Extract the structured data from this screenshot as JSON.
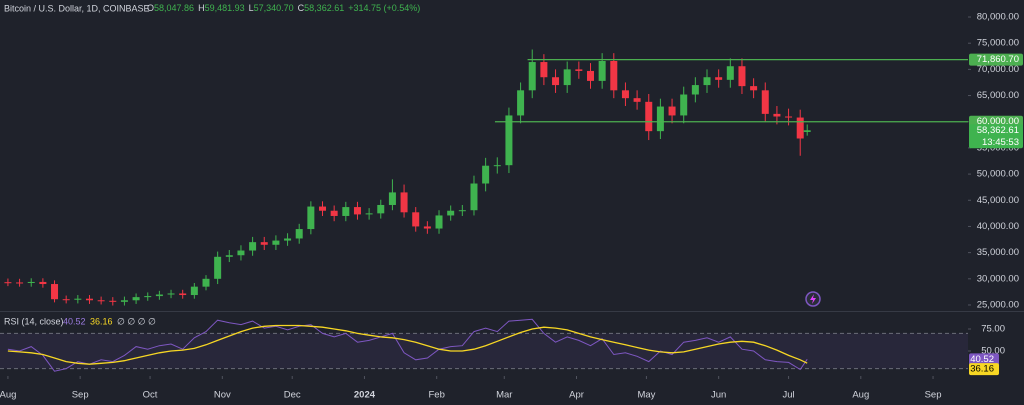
{
  "chart_data": [
    {
      "type": "candlestick",
      "title": "Bitcoin / U.S. Dollar, 1D, COINBASE",
      "header": [
        {
          "label": "O",
          "value": "58,047.86"
        },
        {
          "label": "H",
          "value": "59,481.93"
        },
        {
          "label": "L",
          "value": "57,340.70"
        },
        {
          "label": "C",
          "value": "58,362.61"
        }
      ],
      "change": "+314.75 (+0.54%)",
      "up_color": "#3fb34f",
      "down_color": "#f23645",
      "x": [
        0,
        5,
        10,
        15,
        20,
        25,
        30,
        35,
        40,
        45,
        50,
        55,
        60,
        65,
        70,
        75,
        80,
        85,
        90,
        95,
        100,
        105,
        110,
        115,
        120,
        125,
        130,
        135,
        140,
        145,
        150,
        155,
        160,
        165,
        170,
        175,
        180,
        185,
        190,
        195,
        200,
        205,
        210,
        215,
        220,
        225,
        230,
        235,
        240,
        245,
        250,
        255,
        260,
        265,
        270,
        275,
        280,
        285,
        290,
        295,
        300,
        305,
        310,
        315,
        320,
        325,
        330,
        335,
        340,
        343
      ],
      "open": [
        29350,
        29300,
        29200,
        29400,
        29000,
        26100,
        26000,
        26200,
        25900,
        25800,
        25600,
        25900,
        26500,
        26700,
        27000,
        27200,
        26900,
        28500,
        30000,
        34200,
        34500,
        35400,
        37000,
        36500,
        37300,
        37700,
        39500,
        43800,
        43000,
        42000,
        43700,
        42300,
        42500,
        44100,
        46500,
        42700,
        40000,
        39600,
        42100,
        43000,
        43100,
        48200,
        51600,
        51700,
        61200,
        66000,
        71400,
        68500,
        67000,
        70000,
        69700,
        67800,
        71600,
        66000,
        64500,
        63800,
        58200,
        62900,
        61200,
        65200,
        67000,
        68500,
        68000,
        70600,
        66800,
        66000,
        61500,
        61000,
        60800,
        58047.86
      ],
      "high": [
        30050,
        30000,
        30100,
        30100,
        29700,
        26800,
        26900,
        26900,
        26600,
        26500,
        26600,
        27200,
        27400,
        27700,
        27900,
        27900,
        29200,
        30700,
        35200,
        35500,
        36400,
        38000,
        38000,
        38300,
        38700,
        40500,
        44800,
        44800,
        44000,
        44700,
        44700,
        43500,
        45100,
        49000,
        48000,
        43700,
        41000,
        43100,
        44000,
        44100,
        49700,
        53100,
        53200,
        62700,
        67500,
        73800,
        72900,
        70000,
        71500,
        71500,
        71200,
        73100,
        73100,
        67500,
        66000,
        65300,
        64400,
        64400,
        66700,
        68500,
        70000,
        70000,
        72100,
        72100,
        68300,
        67500,
        63000,
        62500,
        62300,
        59481.93
      ],
      "low": [
        28600,
        28500,
        28500,
        28300,
        25500,
        25300,
        25300,
        25200,
        25100,
        24900,
        24900,
        25200,
        25800,
        26000,
        26300,
        26200,
        26200,
        27800,
        29000,
        33200,
        33500,
        34400,
        35500,
        35500,
        36300,
        36700,
        38500,
        42000,
        41000,
        41000,
        41300,
        41300,
        41500,
        43100,
        41700,
        39000,
        38600,
        38600,
        41100,
        42000,
        42100,
        46700,
        50100,
        50200,
        59700,
        64500,
        67000,
        65500,
        65500,
        68200,
        66300,
        66300,
        64500,
        63000,
        62300,
        56500,
        56700,
        59700,
        59700,
        63700,
        65500,
        66500,
        66500,
        65300,
        64500,
        60000,
        59500,
        59300,
        53500,
        57340.7
      ],
      "close": [
        29300,
        29200,
        29400,
        29000,
        26100,
        26000,
        26200,
        25900,
        25800,
        25600,
        25900,
        26500,
        26700,
        27000,
        27200,
        26900,
        28500,
        30000,
        34200,
        34500,
        35400,
        37000,
        36500,
        37300,
        37700,
        39500,
        43800,
        43000,
        42000,
        43700,
        42300,
        42500,
        44100,
        46500,
        42700,
        40000,
        39600,
        42100,
        43000,
        43100,
        48200,
        51600,
        51700,
        61200,
        66000,
        71400,
        68500,
        67000,
        70000,
        69700,
        67800,
        71600,
        66000,
        64500,
        63800,
        58200,
        62900,
        61200,
        65200,
        67000,
        68500,
        68000,
        70600,
        66800,
        66000,
        61500,
        61000,
        60800,
        56800,
        58362.61
      ],
      "xlim": [
        -3.4,
        412
      ],
      "xticks": [
        {
          "value": 0,
          "label": "Aug"
        },
        {
          "value": 31,
          "label": "Sep"
        },
        {
          "value": 61,
          "label": "Oct"
        },
        {
          "value": 92,
          "label": "Nov"
        },
        {
          "value": 122,
          "label": "Dec"
        },
        {
          "value": 153,
          "label": "2024"
        },
        {
          "value": 184,
          "label": "Feb"
        },
        {
          "value": 213,
          "label": "Mar"
        },
        {
          "value": 244,
          "label": "Apr"
        },
        {
          "value": 274,
          "label": "May"
        },
        {
          "value": 305,
          "label": "Jun"
        },
        {
          "value": 335,
          "label": "Jul"
        },
        {
          "value": 366,
          "label": "Aug"
        },
        {
          "value": 397,
          "label": "Sep"
        }
      ],
      "ylim": [
        23850,
        83250
      ],
      "yticks": [
        {
          "value": 25000,
          "label": "25,000.00"
        },
        {
          "value": 30000,
          "label": "30,000.00"
        },
        {
          "value": 35000,
          "label": "35,000.00"
        },
        {
          "value": 40000,
          "label": "40,000.00"
        },
        {
          "value": 45000,
          "label": "45,000.00"
        },
        {
          "value": 50000,
          "label": "50,000.00"
        },
        {
          "value": 55000,
          "label": "55,000.00"
        },
        {
          "value": 60000,
          "label": "60,000.00"
        },
        {
          "value": 65000,
          "label": "65,000.00"
        },
        {
          "value": 70000,
          "label": "70,000.00"
        },
        {
          "value": 75000,
          "label": "75,000.00"
        },
        {
          "value": 80000,
          "label": "80,000.00"
        }
      ],
      "levels": [
        {
          "value": 71860.7,
          "label": "71,860.70",
          "start": 223,
          "color": "#4caf50"
        },
        {
          "value": 60000,
          "label": "60,000.00",
          "start": 209,
          "color": "#4caf50"
        }
      ],
      "last_price": {
        "value": 58362.61,
        "label": "58,362.61",
        "countdown": "13:45:53",
        "color": "#3fb34f"
      }
    },
    {
      "type": "line",
      "title": "RSI (14, close)",
      "extra_legend": "∅ ∅ ∅ ∅",
      "x": [
        0,
        5,
        10,
        15,
        20,
        25,
        30,
        35,
        40,
        45,
        50,
        55,
        60,
        65,
        70,
        75,
        80,
        85,
        90,
        95,
        100,
        105,
        110,
        115,
        120,
        125,
        130,
        135,
        140,
        145,
        150,
        155,
        160,
        165,
        170,
        175,
        180,
        185,
        190,
        195,
        200,
        205,
        210,
        215,
        220,
        225,
        230,
        235,
        240,
        245,
        250,
        255,
        260,
        265,
        270,
        275,
        280,
        285,
        290,
        295,
        300,
        305,
        310,
        315,
        320,
        325,
        330,
        335,
        340,
        343
      ],
      "series": [
        {
          "color": "#7e57c2",
          "label_text_color": "#ffffff",
          "last_label": "40.52",
          "values": [
            52,
            50,
            55,
            45,
            27,
            30,
            38,
            35,
            40,
            38,
            45,
            55,
            52,
            56,
            58,
            52,
            65,
            72,
            85,
            82,
            80,
            84,
            76,
            78,
            74,
            78,
            80,
            70,
            66,
            70,
            60,
            62,
            66,
            70,
            48,
            40,
            42,
            52,
            55,
            56,
            72,
            76,
            72,
            84,
            85,
            86,
            70,
            60,
            66,
            62,
            56,
            64,
            46,
            48,
            44,
            38,
            50,
            46,
            60,
            62,
            65,
            60,
            66,
            52,
            50,
            40,
            38,
            37,
            29,
            40.52
          ]
        },
        {
          "color": "#f7d724",
          "label_text_color": "#000000",
          "last_label": "36.16",
          "values": [
            50,
            49,
            48,
            46,
            42,
            38,
            36,
            35,
            36,
            37,
            39,
            42,
            45,
            48,
            50,
            51,
            53,
            57,
            62,
            67,
            72,
            76,
            78,
            79,
            79,
            79,
            78,
            77,
            75,
            73,
            70,
            68,
            66,
            65,
            63,
            60,
            56,
            52,
            50,
            50,
            52,
            56,
            61,
            66,
            71,
            75,
            77,
            76,
            74,
            70,
            66,
            63,
            60,
            57,
            54,
            51,
            49,
            48,
            49,
            52,
            55,
            58,
            60,
            61,
            60,
            56,
            51,
            45,
            40,
            36.16
          ]
        }
      ],
      "band": [
        30,
        70
      ],
      "xlim": [
        -3.4,
        412
      ],
      "ylim": [
        21.6,
        94.3
      ],
      "yticks": [
        {
          "value": 75,
          "label": "75.00"
        },
        {
          "value": 50,
          "label": "50.00"
        }
      ]
    }
  ]
}
